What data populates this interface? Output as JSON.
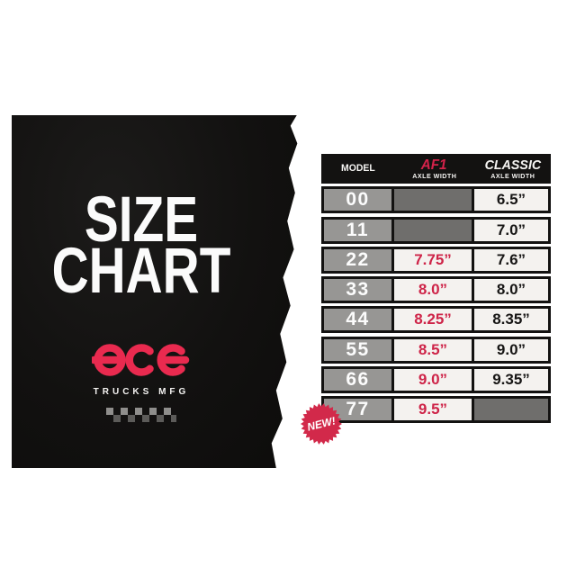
{
  "title": {
    "line1": "SIZE",
    "line2": "CHART"
  },
  "brand": {
    "name": "ACE",
    "tagline": "TRUCKS MFG"
  },
  "badge": {
    "label": "NEW!"
  },
  "table": {
    "header": {
      "model": "MODEL",
      "af1": "AF1",
      "af1_sub": "AXLE WIDTH",
      "classic": "CLASSIC",
      "classic_sub": "AXLE WIDTH"
    },
    "rows": [
      {
        "model": "00",
        "af1": "",
        "classic": "6.5”"
      },
      {
        "model": "11",
        "af1": "",
        "classic": "7.0”"
      },
      {
        "model": "22",
        "af1": "7.75”",
        "classic": "7.6”"
      },
      {
        "model": "33",
        "af1": "8.0”",
        "classic": "8.0”"
      },
      {
        "model": "44",
        "af1": "8.25”",
        "classic": "8.35”"
      },
      {
        "model": "55",
        "af1": "8.5”",
        "classic": "9.0”"
      },
      {
        "model": "66",
        "af1": "9.0”",
        "classic": "9.35”"
      },
      {
        "model": "77",
        "af1": "9.5”",
        "classic": ""
      }
    ]
  },
  "colors": {
    "panel_black": "#121110",
    "accent_red": "#ce2448",
    "logo_red": "#e92a4f",
    "badge_red": "#d2294a",
    "model_cell_gray": "#979694",
    "empty_cell_gray": "#6f6e6c",
    "value_cell_offwhite": "#f4f2ef"
  },
  "chart_data": {
    "type": "table",
    "title": "SIZE CHART",
    "columns": [
      "MODEL",
      "AF1 AXLE WIDTH",
      "CLASSIC AXLE WIDTH"
    ],
    "rows": [
      [
        "00",
        null,
        "6.5\""
      ],
      [
        "11",
        null,
        "7.0\""
      ],
      [
        "22",
        "7.75\"",
        "7.6\""
      ],
      [
        "33",
        "8.0\"",
        "8.0\""
      ],
      [
        "44",
        "8.25\"",
        "8.35\""
      ],
      [
        "55",
        "8.5\"",
        "9.0\""
      ],
      [
        "66",
        "9.0\"",
        "9.35\""
      ],
      [
        "77",
        "9.5\"",
        null
      ]
    ],
    "annotations": [
      "NEW! badge next to model 77 row"
    ]
  }
}
